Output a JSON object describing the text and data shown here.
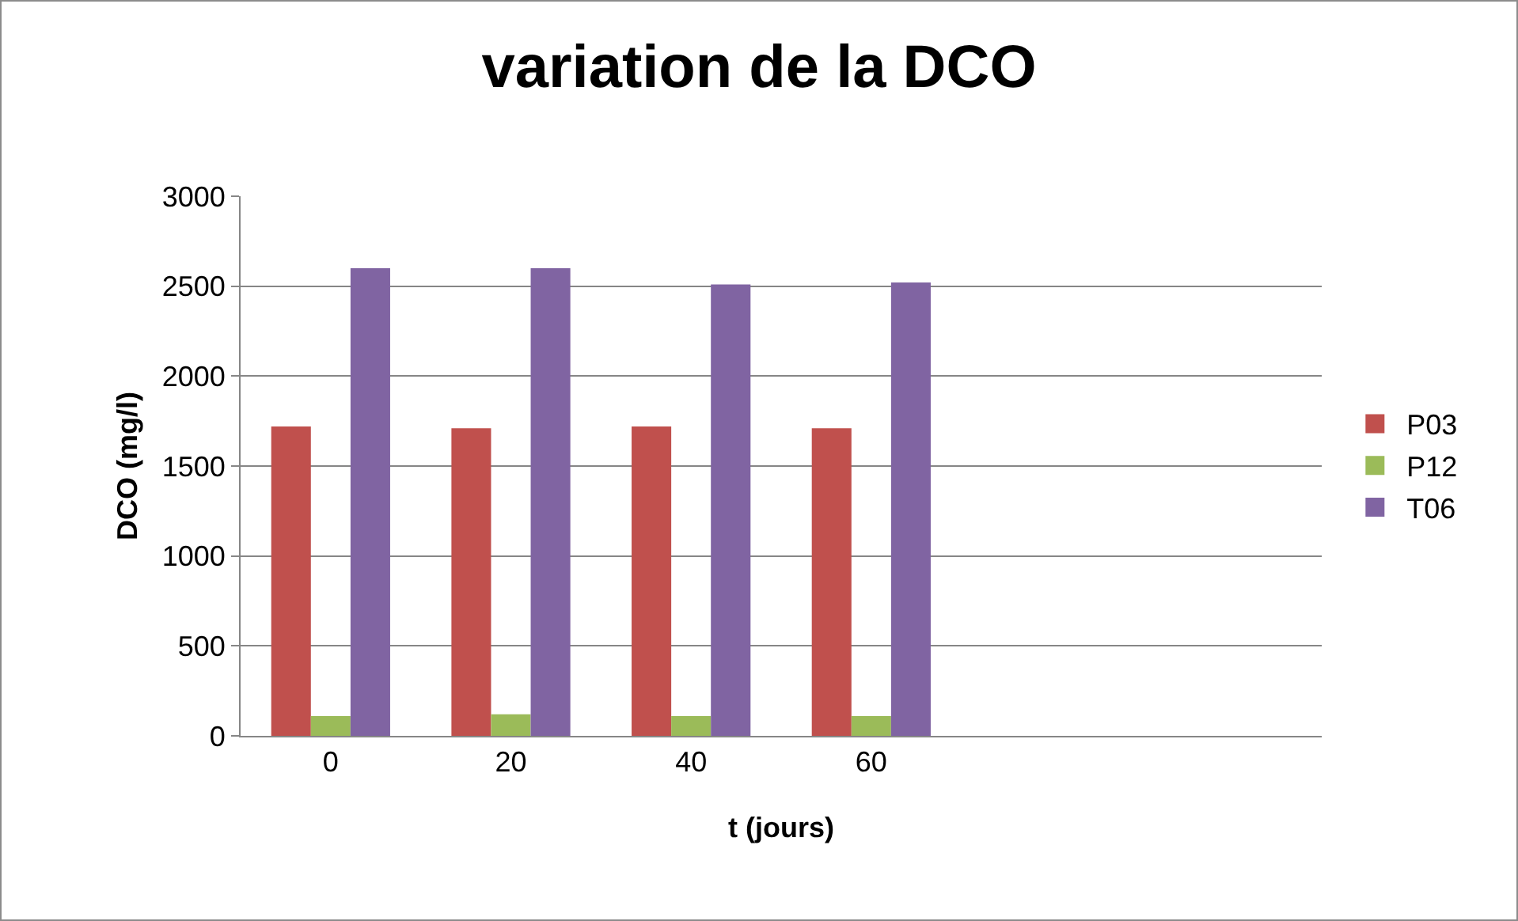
{
  "chart_data": {
    "type": "bar",
    "title": "variation de la DCO",
    "xlabel": "t (jours)",
    "ylabel": "DCO (mg/l)",
    "categories": [
      "0",
      "20",
      "40",
      "60",
      null,
      null
    ],
    "series": [
      {
        "name": "P03",
        "color": "#c0504d",
        "values": [
          1720,
          1710,
          1720,
          1710,
          null,
          null
        ]
      },
      {
        "name": "P12",
        "color": "#9bbb59",
        "values": [
          110,
          120,
          110,
          110,
          null,
          null
        ]
      },
      {
        "name": "T06",
        "color": "#8064a2",
        "values": [
          2600,
          2600,
          2510,
          2520,
          null,
          null
        ]
      }
    ],
    "ylim": [
      0,
      3000
    ],
    "yticks": [
      0,
      500,
      1000,
      1500,
      2000,
      2500,
      3000
    ],
    "grid": "y",
    "legend": "right"
  }
}
